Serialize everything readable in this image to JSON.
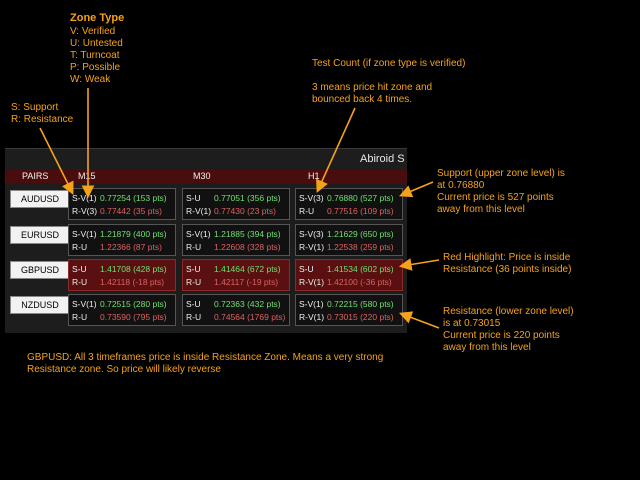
{
  "annotations": {
    "zone_type_title": "Zone Type",
    "zone_type_body": "V: Verified\nU: Untested\nT: Turncoat\nP: Possible\nW: Weak",
    "support_resistance": "S: Support\nR: Resistance",
    "test_count": "Test Count (if zone type is verified)\n\n3 means price hit zone and\nbounced back 4 times.",
    "support_note": "Support (upper zone level) is\nat 0.76880\nCurrent price is 527 points\naway from this level",
    "red_note": "Red Highlight: Price is inside\nResistance (36 points inside)",
    "resistance_note": "Resistance (lower zone level)\nis at 0.73015\nCurrent price is 220 points\naway from this level",
    "gbpusd_note": "GBPUSD: All 3 timeframes price is inside Resistance Zone. Means a very strong\nResistance zone. So price will likely reverse"
  },
  "panel": {
    "title": "Abiroid S",
    "headers": {
      "pairs": "PAIRS",
      "m15": "M15",
      "m30": "M30",
      "h1": "H1"
    }
  },
  "pairs": [
    {
      "name": "AUDUSD",
      "cells": [
        {
          "red": false,
          "s_label": "S-V(1)",
          "s_val": "0.77254 (153 pts)",
          "r_label": "R-V(3)",
          "r_val": "0.77442 (35 pts)"
        },
        {
          "red": false,
          "s_label": "S-U",
          "s_val": "0.77051 (356 pts)",
          "r_label": "R-V(1)",
          "r_val": "0.77430 (23 pts)"
        },
        {
          "red": false,
          "s_label": "S-V(3)",
          "s_val": "0.76880 (527 pts)",
          "r_label": "R-U",
          "r_val": "0.77516 (109 pts)"
        }
      ]
    },
    {
      "name": "EURUSD",
      "cells": [
        {
          "red": false,
          "s_label": "S-V(1)",
          "s_val": "1.21879 (400 pts)",
          "r_label": "R-U",
          "r_val": "1.22366 (87 pts)"
        },
        {
          "red": false,
          "s_label": "S-V(1)",
          "s_val": "1.21885 (394 pts)",
          "r_label": "R-U",
          "r_val": "1.22608 (328 pts)"
        },
        {
          "red": false,
          "s_label": "S-V(3)",
          "s_val": "1.21629 (650 pts)",
          "r_label": "R-V(1)",
          "r_val": "1.22538 (259 pts)"
        }
      ]
    },
    {
      "name": "GBPUSD",
      "cells": [
        {
          "red": true,
          "s_label": "S-U",
          "s_val": "1.41708 (428 pts)",
          "r_label": "R-U",
          "r_val": "1.42118 (-18 pts)"
        },
        {
          "red": true,
          "s_label": "S-U",
          "s_val": "1.41464 (672 pts)",
          "r_label": "R-U",
          "r_val": "1.42117 (-19 pts)"
        },
        {
          "red": true,
          "s_label": "S-U",
          "s_val": "1.41534 (602 pts)",
          "r_label": "R-V(1)",
          "r_val": "1.42100 (-36 pts)"
        }
      ]
    },
    {
      "name": "NZDUSD",
      "cells": [
        {
          "red": false,
          "s_label": "S-V(1)",
          "s_val": "0.72515 (280 pts)",
          "r_label": "R-U",
          "r_val": "0.73590 (795 pts)"
        },
        {
          "red": false,
          "s_label": "S-U",
          "s_val": "0.72363 (432 pts)",
          "r_label": "R-U",
          "r_val": "0.74564 (1769 pts)"
        },
        {
          "red": false,
          "s_label": "S-V(1)",
          "s_val": "0.72215 (580 pts)",
          "r_label": "R-V(1)",
          "r_val": "0.73015 (220 pts)"
        }
      ]
    }
  ],
  "colors": {
    "annotation": "#f5a21a",
    "support": "#6fe06f",
    "resistance": "#e06060",
    "highlight": "#5a1010"
  }
}
